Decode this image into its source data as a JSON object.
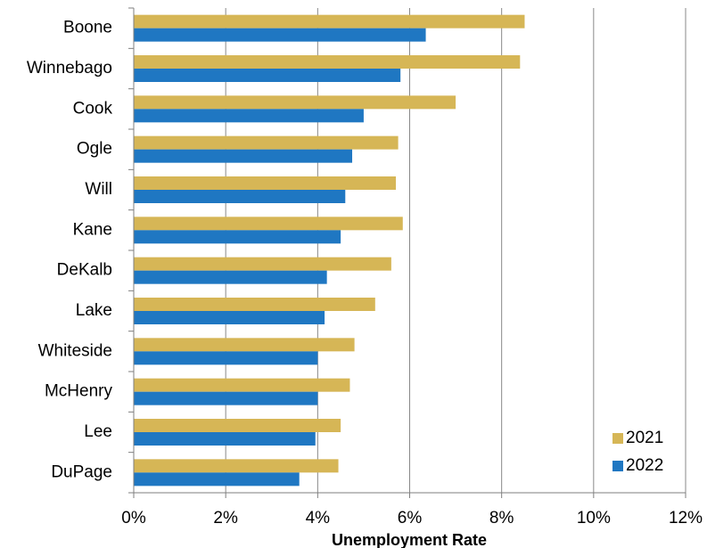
{
  "chart_data": {
    "type": "bar",
    "orientation": "horizontal",
    "categories": [
      "Boone",
      "Winnebago",
      "Cook",
      "Ogle",
      "Will",
      "Kane",
      "DeKalb",
      "Lake",
      "Whiteside",
      "McHenry",
      "Lee",
      "DuPage"
    ],
    "series": [
      {
        "name": "2021",
        "color": "#d6b656",
        "values": [
          8.5,
          8.4,
          7.0,
          5.75,
          5.7,
          5.85,
          5.6,
          5.25,
          4.8,
          4.7,
          4.5,
          4.45
        ]
      },
      {
        "name": "2022",
        "color": "#1f77c2",
        "values": [
          6.35,
          5.8,
          5.0,
          4.75,
          4.6,
          4.5,
          4.2,
          4.15,
          4.0,
          4.0,
          3.95,
          3.6
        ]
      }
    ],
    "xlabel": "Unemployment Rate",
    "ylabel": "",
    "xlim": [
      0,
      12
    ],
    "xticks": [
      "0%",
      "2%",
      "4%",
      "6%",
      "8%",
      "10%",
      "12%"
    ],
    "grid": "vertical",
    "legend_position": "bottom-right"
  }
}
